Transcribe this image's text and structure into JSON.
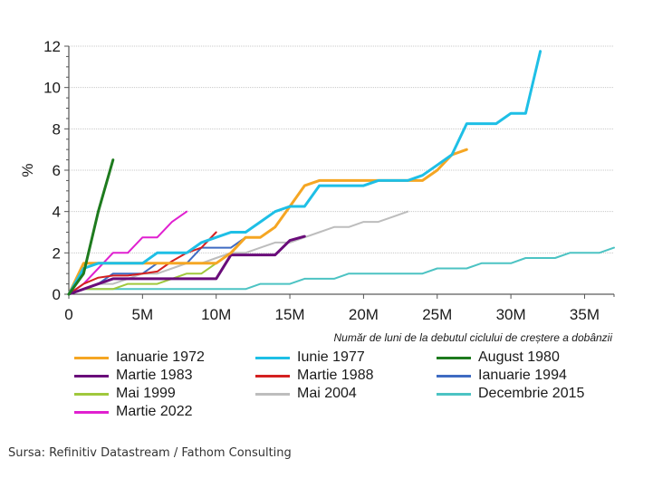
{
  "chart_data": {
    "type": "line",
    "title": "",
    "xlabel": "Număr de luni de la debutul ciclului de creștere a dobânzii",
    "ylabel": "%",
    "xlim": [
      0,
      37
    ],
    "ylim": [
      0,
      12
    ],
    "xticks": [
      0,
      5,
      10,
      15,
      20,
      25,
      30,
      35
    ],
    "xtick_labels": [
      "0",
      "5M",
      "10M",
      "15M",
      "20M",
      "25M",
      "30M",
      "35M"
    ],
    "yticks": [
      0,
      2,
      4,
      6,
      8,
      10,
      12
    ],
    "ytick_labels": [
      "0",
      "2",
      "4",
      "6",
      "8",
      "10",
      "12"
    ],
    "grid": "horizontal-dotted",
    "legend_position": "bottom",
    "series": [
      {
        "name": "Ianuarie 1972",
        "color": "#F5A623",
        "x": [
          0,
          1,
          2,
          3,
          4,
          5,
          6,
          7,
          8,
          9,
          10,
          11,
          12,
          13,
          14,
          15,
          16,
          17,
          18,
          19,
          20,
          21,
          22,
          23,
          24,
          25,
          26,
          27
        ],
        "values": [
          0,
          1.5,
          1.5,
          1.5,
          1.5,
          1.5,
          1.5,
          1.5,
          1.5,
          1.5,
          1.5,
          2.0,
          2.75,
          2.75,
          3.25,
          4.25,
          5.25,
          5.5,
          5.5,
          5.5,
          5.5,
          5.5,
          5.5,
          5.5,
          5.5,
          6.0,
          6.75,
          7.0
        ]
      },
      {
        "name": "Iunie 1977",
        "color": "#1EBFE6",
        "x": [
          0,
          1,
          2,
          3,
          4,
          5,
          6,
          7,
          8,
          9,
          10,
          11,
          12,
          13,
          14,
          15,
          16,
          17,
          18,
          19,
          20,
          21,
          22,
          23,
          24,
          25,
          26,
          27,
          28,
          29,
          30,
          31,
          32
        ],
        "values": [
          0,
          1.25,
          1.5,
          1.5,
          1.5,
          1.5,
          2.0,
          2.0,
          2.0,
          2.5,
          2.75,
          3.0,
          3.0,
          3.5,
          4.0,
          4.25,
          4.25,
          5.25,
          5.25,
          5.25,
          5.25,
          5.5,
          5.5,
          5.5,
          5.75,
          6.25,
          6.75,
          8.25,
          8.25,
          8.25,
          8.75,
          8.75,
          11.75
        ]
      },
      {
        "name": "August 1980",
        "color": "#1E7B1E",
        "x": [
          0,
          1,
          2,
          3
        ],
        "values": [
          0,
          1.0,
          4.0,
          6.5
        ]
      },
      {
        "name": "Martie 1983",
        "color": "#6A0C7A",
        "x": [
          0,
          1,
          2,
          3,
          4,
          5,
          6,
          7,
          8,
          9,
          10,
          11,
          12,
          13,
          14,
          15,
          16
        ],
        "values": [
          0,
          0.25,
          0.5,
          0.75,
          0.75,
          0.75,
          0.75,
          0.75,
          0.75,
          0.75,
          0.75,
          1.9,
          1.9,
          1.9,
          1.9,
          2.6,
          2.8
        ]
      },
      {
        "name": "Martie 1988",
        "color": "#D42020",
        "x": [
          0,
          1,
          2,
          3,
          4,
          5,
          6,
          7,
          8,
          9,
          10
        ],
        "values": [
          0,
          0.5,
          0.8,
          0.9,
          0.9,
          1.0,
          1.1,
          1.6,
          2.0,
          2.25,
          3.0
        ]
      },
      {
        "name": "Ianuarie 1994",
        "color": "#3F6BC2",
        "x": [
          0,
          1,
          2,
          3,
          4,
          5,
          6,
          7,
          8,
          9,
          10,
          11,
          12
        ],
        "values": [
          0,
          0.25,
          0.5,
          1.0,
          1.0,
          1.0,
          1.5,
          1.5,
          1.5,
          2.25,
          2.25,
          2.25,
          2.75
        ]
      },
      {
        "name": "Mai 1999",
        "color": "#A0C83C",
        "x": [
          0,
          1,
          2,
          3,
          4,
          5,
          6,
          7,
          8,
          9,
          10,
          11
        ],
        "values": [
          0,
          0.25,
          0.25,
          0.25,
          0.5,
          0.5,
          0.5,
          0.75,
          1.0,
          1.0,
          1.5,
          2.0
        ]
      },
      {
        "name": "Mai 2004",
        "color": "#BDBDBD",
        "x": [
          0,
          1,
          2,
          3,
          4,
          5,
          6,
          7,
          8,
          9,
          10,
          11,
          12,
          13,
          14,
          15,
          16,
          17,
          18,
          19,
          20,
          21,
          22,
          23
        ],
        "values": [
          0,
          0.25,
          0.5,
          0.5,
          0.75,
          1.0,
          1.0,
          1.25,
          1.5,
          1.5,
          1.75,
          2.0,
          2.0,
          2.25,
          2.5,
          2.5,
          2.75,
          3.0,
          3.25,
          3.25,
          3.5,
          3.5,
          3.75,
          4.0
        ]
      },
      {
        "name": "Decembrie 2015",
        "color": "#4CC3C3",
        "x": [
          0,
          1,
          2,
          3,
          4,
          5,
          6,
          7,
          8,
          9,
          10,
          11,
          12,
          13,
          14,
          15,
          16,
          17,
          18,
          19,
          20,
          21,
          22,
          23,
          24,
          25,
          26,
          27,
          28,
          29,
          30,
          31,
          32,
          33,
          34,
          35,
          36,
          37
        ],
        "values": [
          0,
          0.25,
          0.25,
          0.25,
          0.25,
          0.25,
          0.25,
          0.25,
          0.25,
          0.25,
          0.25,
          0.25,
          0.25,
          0.5,
          0.5,
          0.5,
          0.75,
          0.75,
          0.75,
          1.0,
          1.0,
          1.0,
          1.0,
          1.0,
          1.0,
          1.25,
          1.25,
          1.25,
          1.5,
          1.5,
          1.5,
          1.75,
          1.75,
          1.75,
          2.0,
          2.0,
          2.0,
          2.25
        ]
      },
      {
        "name": "Martie 2022",
        "color": "#E020D0",
        "x": [
          0,
          1,
          2,
          3,
          4,
          5,
          6,
          7,
          8
        ],
        "values": [
          0,
          0.5,
          1.25,
          2.0,
          2.0,
          2.75,
          2.75,
          3.5,
          4.0
        ]
      }
    ]
  },
  "legend_order": [
    0,
    1,
    2,
    3,
    4,
    5,
    6,
    7,
    8,
    9
  ],
  "source": "Sursa: Refinitiv Datastream / Fathom Consulting"
}
